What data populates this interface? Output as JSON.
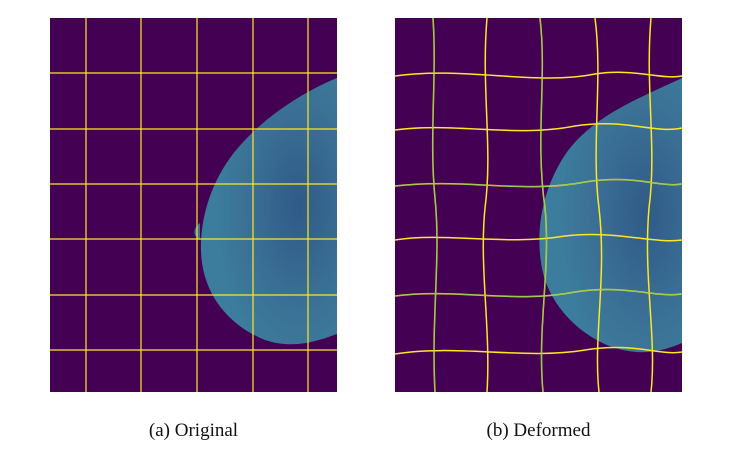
{
  "figure": {
    "captions": {
      "a": "(a) Original",
      "b": "(b) Deformed"
    },
    "colors": {
      "background": "#440154",
      "tissue": "#2f6a8c",
      "grid": "#fde725"
    }
  }
}
